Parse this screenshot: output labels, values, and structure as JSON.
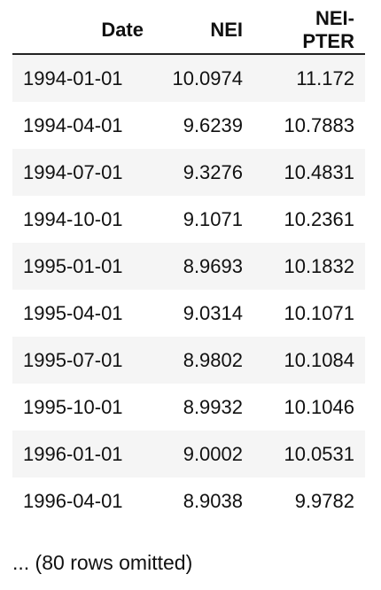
{
  "table": {
    "columns": [
      "Date",
      "NEI",
      "NEI-PTER"
    ],
    "rows": [
      [
        "1994-01-01",
        "10.0974",
        "11.172"
      ],
      [
        "1994-04-01",
        "9.6239",
        "10.7883"
      ],
      [
        "1994-07-01",
        "9.3276",
        "10.4831"
      ],
      [
        "1994-10-01",
        "9.1071",
        "10.2361"
      ],
      [
        "1995-01-01",
        "8.9693",
        "10.1832"
      ],
      [
        "1995-04-01",
        "9.0314",
        "10.1071"
      ],
      [
        "1995-07-01",
        "8.9802",
        "10.1084"
      ],
      [
        "1995-10-01",
        "8.9932",
        "10.1046"
      ],
      [
        "1996-01-01",
        "9.0002",
        "10.0531"
      ],
      [
        "1996-04-01",
        "8.9038",
        "9.9782"
      ]
    ]
  },
  "footer": {
    "text": "... (80 rows omitted)"
  }
}
